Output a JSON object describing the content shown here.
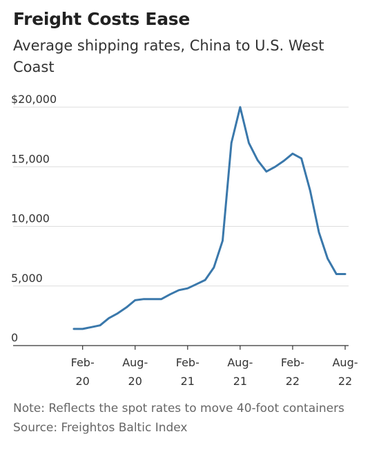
{
  "title": "Freight Costs Ease",
  "subtitle": "Average shipping rates, China to U.S. West Coast",
  "note": "Note: Reflects the spot rates to move 40-foot containers",
  "source": "Source: Freightos Baltic Index",
  "colors": {
    "line": "#3a78ab",
    "grid": "#dddddd",
    "axis": "#333333"
  },
  "chart_data": {
    "type": "line",
    "title": "Freight Costs Ease",
    "subtitle": "Average shipping rates, China to U.S. West Coast",
    "xlabel": "",
    "ylabel": "",
    "ylim": [
      0,
      20000
    ],
    "y_ticks": [
      {
        "value": 0,
        "label": "0"
      },
      {
        "value": 5000,
        "label": "5,000"
      },
      {
        "value": 10000,
        "label": "10,000"
      },
      {
        "value": 15000,
        "label": "15,000"
      },
      {
        "value": 20000,
        "label": "$20,000"
      }
    ],
    "x_ticks": [
      {
        "value": "2020-02",
        "line1": "Feb-",
        "line2": "20"
      },
      {
        "value": "2020-08",
        "line1": "Aug-",
        "line2": "20"
      },
      {
        "value": "2021-02",
        "line1": "Feb-",
        "line2": "21"
      },
      {
        "value": "2021-08",
        "line1": "Aug-",
        "line2": "21"
      },
      {
        "value": "2022-02",
        "line1": "Feb-",
        "line2": "22"
      },
      {
        "value": "2022-08",
        "line1": "Aug-",
        "line2": "22"
      }
    ],
    "grid": true,
    "legend": "none",
    "series": [
      {
        "x": [
          "2020-01",
          "2020-02",
          "2020-03",
          "2020-04",
          "2020-05",
          "2020-06",
          "2020-07",
          "2020-08",
          "2020-09",
          "2020-10",
          "2020-11",
          "2020-12",
          "2021-01",
          "2021-02",
          "2021-03",
          "2021-04",
          "2021-05",
          "2021-06",
          "2021-07",
          "2021-08",
          "2021-09",
          "2021-10",
          "2021-11",
          "2021-12",
          "2022-01",
          "2022-02",
          "2022-03",
          "2022-04",
          "2022-05",
          "2022-06",
          "2022-07",
          "2022-08"
        ],
        "values": [
          1400,
          1400,
          1550,
          1700,
          2300,
          2700,
          3200,
          3800,
          3900,
          3900,
          3900,
          4300,
          4650,
          4800,
          5150,
          5500,
          6550,
          8800,
          17000,
          20000,
          17000,
          15550,
          14600,
          15000,
          15500,
          16100,
          15700,
          13000,
          9500,
          7300,
          6000,
          6000
        ]
      }
    ]
  }
}
